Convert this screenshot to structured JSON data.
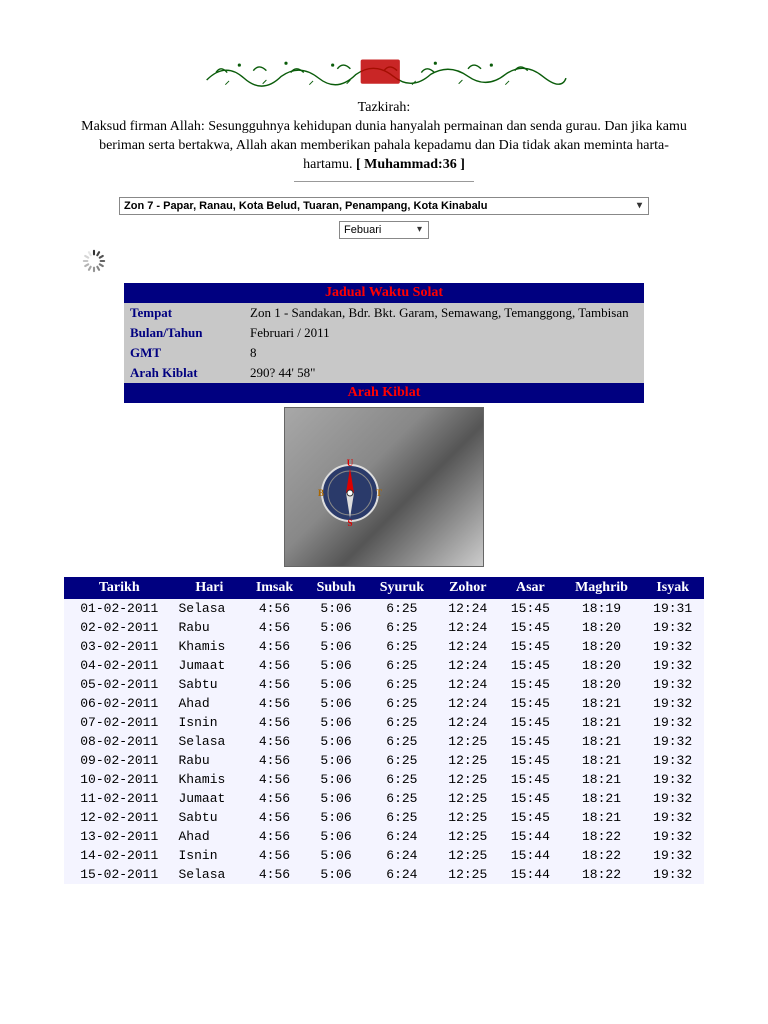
{
  "header": {
    "tazkirah_label": "Tazkirah:",
    "tazkirah_text": "Maksud firman Allah: Sesungguhnya kehidupan dunia hanyalah permainan dan senda gurau. Dan jika kamu beriman serta bertakwa, Allah akan memberikan pahala kepadamu dan Dia tidak akan meminta harta-hartamu.",
    "tazkirah_ref": "[ Muhammad:36 ]"
  },
  "selectors": {
    "zone": "Zon 7 -  Papar, Ranau, Kota Belud, Tuaran, Penampang, Kota Kinabalu",
    "month": "Febuari"
  },
  "info": {
    "title": "Jadual Waktu Solat",
    "tempat_label": "Tempat",
    "tempat_value": "Zon 1 - Sandakan, Bdr. Bkt. Garam, Semawang, Temanggong, Tambisan",
    "bulan_label": "Bulan/Tahun",
    "bulan_value": "Februari / 2011",
    "gmt_label": "GMT",
    "gmt_value": "8",
    "kiblat_label": "Arah Kiblat",
    "kiblat_value": "290? 44' 58\"",
    "kiblat_title": "Arah Kiblat"
  },
  "compass": {
    "labels": {
      "n": "U",
      "e": "T",
      "s": "S",
      "w": "B"
    }
  },
  "columns": [
    "Tarikh",
    "Hari",
    "Imsak",
    "Subuh",
    "Syuruk",
    "Zohor",
    "Asar",
    "Maghrib",
    "Isyak"
  ],
  "rows": [
    [
      "01-02-2011",
      "Selasa",
      "4:56",
      "5:06",
      "6:25",
      "12:24",
      "15:45",
      "18:19",
      "19:31"
    ],
    [
      "02-02-2011",
      "Rabu",
      "4:56",
      "5:06",
      "6:25",
      "12:24",
      "15:45",
      "18:20",
      "19:32"
    ],
    [
      "03-02-2011",
      "Khamis",
      "4:56",
      "5:06",
      "6:25",
      "12:24",
      "15:45",
      "18:20",
      "19:32"
    ],
    [
      "04-02-2011",
      "Jumaat",
      "4:56",
      "5:06",
      "6:25",
      "12:24",
      "15:45",
      "18:20",
      "19:32"
    ],
    [
      "05-02-2011",
      "Sabtu",
      "4:56",
      "5:06",
      "6:25",
      "12:24",
      "15:45",
      "18:20",
      "19:32"
    ],
    [
      "06-02-2011",
      "Ahad",
      "4:56",
      "5:06",
      "6:25",
      "12:24",
      "15:45",
      "18:21",
      "19:32"
    ],
    [
      "07-02-2011",
      "Isnin",
      "4:56",
      "5:06",
      "6:25",
      "12:24",
      "15:45",
      "18:21",
      "19:32"
    ],
    [
      "08-02-2011",
      "Selasa",
      "4:56",
      "5:06",
      "6:25",
      "12:25",
      "15:45",
      "18:21",
      "19:32"
    ],
    [
      "09-02-2011",
      "Rabu",
      "4:56",
      "5:06",
      "6:25",
      "12:25",
      "15:45",
      "18:21",
      "19:32"
    ],
    [
      "10-02-2011",
      "Khamis",
      "4:56",
      "5:06",
      "6:25",
      "12:25",
      "15:45",
      "18:21",
      "19:32"
    ],
    [
      "11-02-2011",
      "Jumaat",
      "4:56",
      "5:06",
      "6:25",
      "12:25",
      "15:45",
      "18:21",
      "19:32"
    ],
    [
      "12-02-2011",
      "Sabtu",
      "4:56",
      "5:06",
      "6:25",
      "12:25",
      "15:45",
      "18:21",
      "19:32"
    ],
    [
      "13-02-2011",
      "Ahad",
      "4:56",
      "5:06",
      "6:24",
      "12:25",
      "15:44",
      "18:22",
      "19:32"
    ],
    [
      "14-02-2011",
      "Isnin",
      "4:56",
      "5:06",
      "6:24",
      "12:25",
      "15:44",
      "18:22",
      "19:32"
    ],
    [
      "15-02-2011",
      "Selasa",
      "4:56",
      "5:06",
      "6:24",
      "12:25",
      "15:44",
      "18:22",
      "19:32"
    ]
  ],
  "colors": {
    "header_bg": "#000080",
    "header_red": "#ff0000",
    "info_bg": "#c8c8c8",
    "row_bg": "#f4f4ff"
  }
}
